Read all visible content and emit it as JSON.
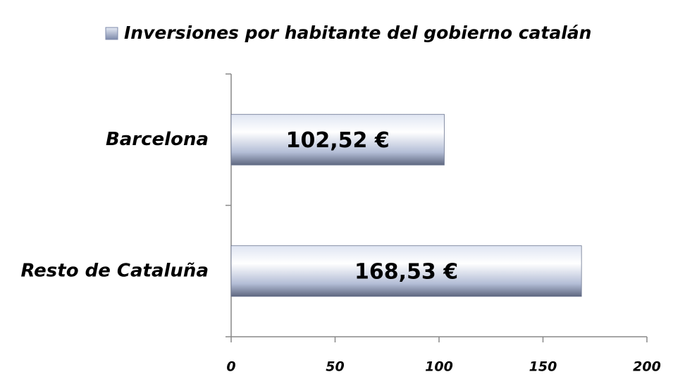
{
  "chart_data": {
    "type": "bar",
    "orientation": "horizontal",
    "categories": [
      "Barcelona",
      "Resto de Cataluña"
    ],
    "series": [
      {
        "name": "Inversiones por habitante del gobierno catalán",
        "color": "#8e9cc0",
        "values": [
          102.52,
          168.53
        ],
        "value_labels": [
          "102,52 €",
          "168,53 €"
        ]
      }
    ],
    "xlim": [
      0,
      200
    ],
    "xticks": [
      0,
      50,
      100,
      150,
      200
    ],
    "legend": "top"
  }
}
